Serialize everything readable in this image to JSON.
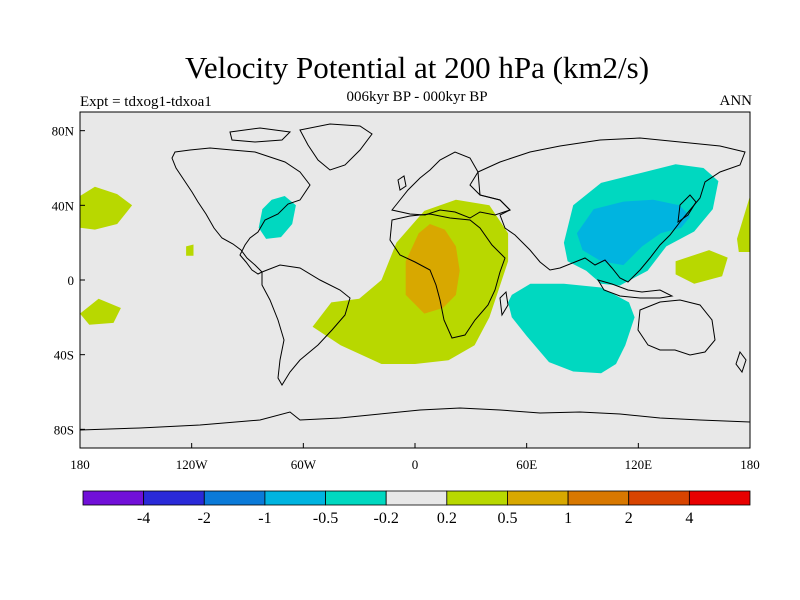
{
  "header": {
    "title": "Velocity Potential at 200 hPa (km2/s)",
    "subtitle": "006kyr BP - 000kyr BP",
    "experiment": "Expt = tdxog1-tdxoa1",
    "season": "ANN"
  },
  "chart_data": {
    "type": "filled-contour-map",
    "projection": "cylindrical equidistant",
    "xlim": [
      -180,
      180
    ],
    "ylim": [
      -90,
      90
    ],
    "x_ticks": [
      {
        "value": -180,
        "label": "180"
      },
      {
        "value": -120,
        "label": "120W"
      },
      {
        "value": -60,
        "label": "60W"
      },
      {
        "value": 0,
        "label": "0"
      },
      {
        "value": 60,
        "label": "60E"
      },
      {
        "value": 120,
        "label": "120E"
      },
      {
        "value": 180,
        "label": "180"
      }
    ],
    "y_ticks": [
      {
        "value": 80,
        "label": "80N"
      },
      {
        "value": 40,
        "label": "40N"
      },
      {
        "value": 0,
        "label": "0"
      },
      {
        "value": -40,
        "label": "40S"
      },
      {
        "value": -80,
        "label": "80S"
      }
    ],
    "background_color": "#e8e8e8",
    "colorbar": {
      "colors": [
        "#7110d8",
        "#2a2ad8",
        "#0a7ad8",
        "#00b4e0",
        "#00d8c0",
        "#e8e8e8",
        "#b8d800",
        "#d8a800",
        "#d87800",
        "#d84400",
        "#e80000"
      ],
      "levels": [
        "-4",
        "-2",
        "-1",
        "-0.5",
        "-0.2",
        "0.2",
        "0.5",
        "1",
        "2",
        "4"
      ]
    },
    "regions": [
      {
        "name": "east-asia-pacific",
        "level": "-0.5 to -0.2",
        "color": "#00d8c0",
        "lonlat": [
          [
            80,
            20
          ],
          [
            85,
            40
          ],
          [
            100,
            52
          ],
          [
            120,
            57
          ],
          [
            140,
            62
          ],
          [
            155,
            60
          ],
          [
            163,
            53
          ],
          [
            160,
            38
          ],
          [
            150,
            26
          ],
          [
            135,
            18
          ],
          [
            125,
            5
          ],
          [
            110,
            -3
          ],
          [
            100,
            -2
          ],
          [
            92,
            5
          ],
          [
            82,
            10
          ]
        ]
      },
      {
        "name": "indian-ocean-australia",
        "level": "-0.5 to -0.2",
        "color": "#00d8c0",
        "lonlat": [
          [
            52,
            -8
          ],
          [
            62,
            -2
          ],
          [
            80,
            -2
          ],
          [
            100,
            -4
          ],
          [
            115,
            -12
          ],
          [
            118,
            -20
          ],
          [
            113,
            -35
          ],
          [
            108,
            -45
          ],
          [
            100,
            -50
          ],
          [
            85,
            -49
          ],
          [
            72,
            -44
          ],
          [
            60,
            -30
          ],
          [
            52,
            -20
          ],
          [
            50,
            -12
          ]
        ]
      },
      {
        "name": "east-asia-core",
        "level": "-1 to -0.5",
        "color": "#00b4e0",
        "lonlat": [
          [
            87,
            25
          ],
          [
            96,
            38
          ],
          [
            112,
            42
          ],
          [
            128,
            43
          ],
          [
            142,
            40
          ],
          [
            148,
            34
          ],
          [
            143,
            28
          ],
          [
            132,
            25
          ],
          [
            122,
            18
          ],
          [
            112,
            8
          ],
          [
            100,
            10
          ],
          [
            90,
            16
          ]
        ]
      },
      {
        "name": "north-atlantic-east-us",
        "level": "-0.5 to -0.2",
        "color": "#00d8c0",
        "lonlat": [
          [
            -84,
            28
          ],
          [
            -82,
            38
          ],
          [
            -77,
            43
          ],
          [
            -70,
            45
          ],
          [
            -64,
            40
          ],
          [
            -66,
            30
          ],
          [
            -72,
            23
          ],
          [
            -80,
            22
          ]
        ]
      },
      {
        "name": "africa-south-atlantic",
        "level": "0.2 to 0.5",
        "color": "#b8d800",
        "lonlat": [
          [
            -10,
            20
          ],
          [
            5,
            37
          ],
          [
            22,
            43
          ],
          [
            40,
            40
          ],
          [
            50,
            25
          ],
          [
            50,
            10
          ],
          [
            45,
            -5
          ],
          [
            40,
            -20
          ],
          [
            32,
            -35
          ],
          [
            18,
            -43
          ],
          [
            0,
            -45
          ],
          [
            -18,
            -45
          ],
          [
            -40,
            -35
          ],
          [
            -55,
            -25
          ],
          [
            -45,
            -12
          ],
          [
            -30,
            -10
          ],
          [
            -18,
            0
          ]
        ]
      },
      {
        "name": "africa-core",
        "level": "0.5 to 1",
        "color": "#d8a800",
        "lonlat": [
          [
            -5,
            10
          ],
          [
            2,
            25
          ],
          [
            8,
            30
          ],
          [
            16,
            27
          ],
          [
            22,
            18
          ],
          [
            24,
            5
          ],
          [
            22,
            -8
          ],
          [
            15,
            -15
          ],
          [
            5,
            -18
          ],
          [
            -5,
            -8
          ]
        ]
      },
      {
        "name": "central-pacific-nw",
        "level": "0.2 to 0.5",
        "color": "#b8d800",
        "lonlat": [
          [
            -180,
            45
          ],
          [
            -172,
            50
          ],
          [
            -160,
            46
          ],
          [
            -152,
            40
          ],
          [
            -160,
            30
          ],
          [
            -172,
            27
          ],
          [
            -180,
            28
          ]
        ]
      },
      {
        "name": "central-pacific-s",
        "level": "0.2 to 0.5",
        "color": "#b8d800",
        "lonlat": [
          [
            -180,
            -18
          ],
          [
            -170,
            -10
          ],
          [
            -158,
            -15
          ],
          [
            -162,
            -23
          ],
          [
            -175,
            -24
          ]
        ]
      },
      {
        "name": "mexico-patch",
        "level": "0.2 to 0.5",
        "color": "#b8d800",
        "lonlat": [
          [
            -123,
            18
          ],
          [
            -119,
            19
          ],
          [
            -119,
            13
          ],
          [
            -123,
            13
          ]
        ]
      },
      {
        "name": "western-pacific-patch",
        "level": "0.2 to 0.5",
        "color": "#b8d800",
        "lonlat": [
          [
            140,
            10
          ],
          [
            158,
            16
          ],
          [
            168,
            12
          ],
          [
            165,
            2
          ],
          [
            150,
            -2
          ],
          [
            140,
            3
          ]
        ]
      },
      {
        "name": "dateline-east-patch",
        "level": "0.2 to 0.5",
        "color": "#b8d800",
        "lonlat": [
          [
            173,
            22
          ],
          [
            180,
            45
          ],
          [
            180,
            15
          ],
          [
            174,
            15
          ]
        ]
      }
    ]
  }
}
